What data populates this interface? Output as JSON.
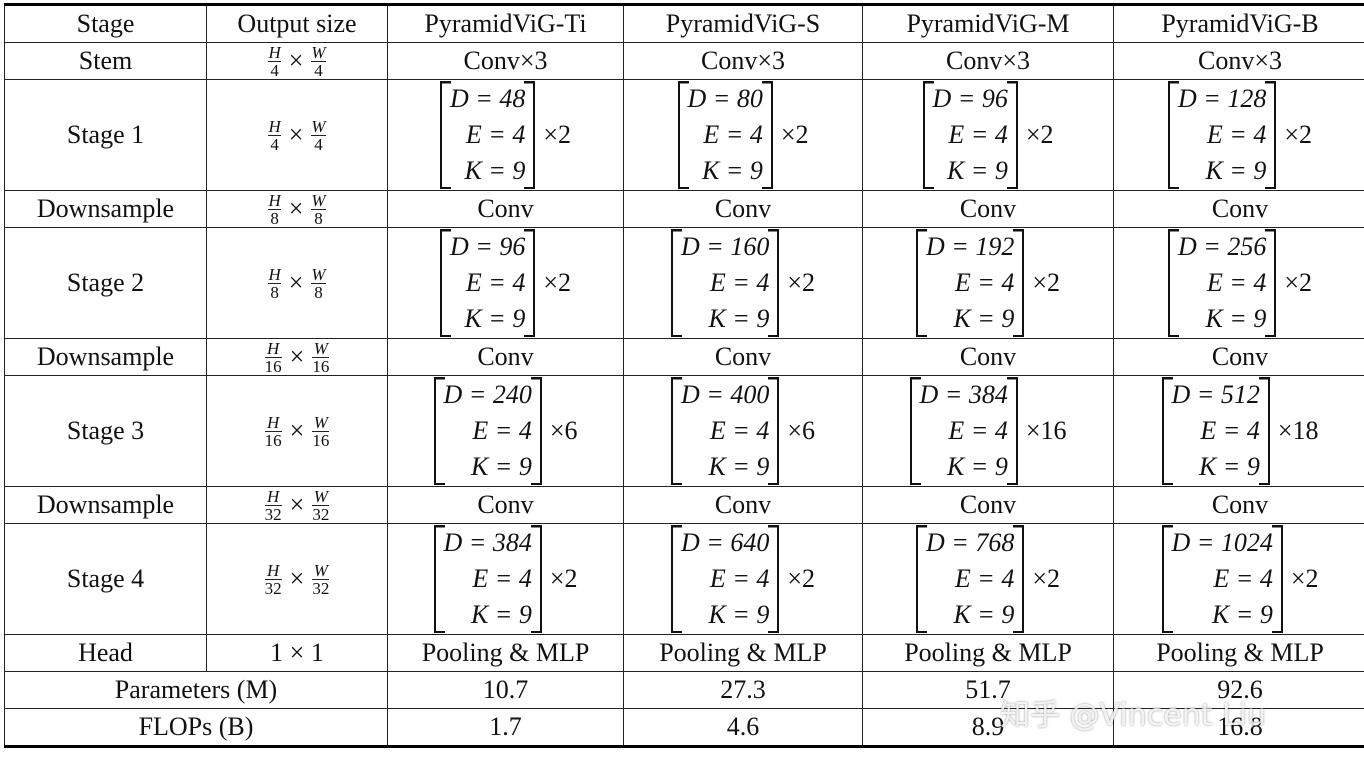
{
  "symbols": {
    "times": "×"
  },
  "table": {
    "header": [
      "Stage",
      "Output size",
      "PyramidViG-Ti",
      "PyramidViG-S",
      "PyramidViG-M",
      "PyramidViG-B"
    ],
    "rows": [
      {
        "stage": "Stem",
        "size": "H/4",
        "size_parts": {
          "h": "H",
          "hd": "4",
          "w": "W",
          "wd": "4"
        },
        "cells": [
          "Conv×3",
          "Conv×3",
          "Conv×3",
          "Conv×3"
        ]
      },
      {
        "stage": "Stage 1",
        "size_parts": {
          "h": "H",
          "hd": "4",
          "w": "W",
          "wd": "4"
        },
        "cells": [
          {
            "D": "D = 48",
            "E": "E = 4",
            "K": "K = 9",
            "repeat": "×2"
          },
          {
            "D": "D = 80",
            "E": "E = 4",
            "K": "K = 9",
            "repeat": "×2"
          },
          {
            "D": "D = 96",
            "E": "E = 4",
            "K": "K = 9",
            "repeat": "×2"
          },
          {
            "D": "D = 128",
            "E": "E = 4",
            "K": "K = 9",
            "repeat": "×2"
          }
        ]
      },
      {
        "stage": "Downsample",
        "size_parts": {
          "h": "H",
          "hd": "8",
          "w": "W",
          "wd": "8"
        },
        "cells": [
          "Conv",
          "Conv",
          "Conv",
          "Conv"
        ]
      },
      {
        "stage": "Stage 2",
        "size_parts": {
          "h": "H",
          "hd": "8",
          "w": "W",
          "wd": "8"
        },
        "cells": [
          {
            "D": "D = 96",
            "E": "E = 4",
            "K": "K = 9",
            "repeat": "×2"
          },
          {
            "D": "D = 160",
            "E": "E = 4",
            "K": "K = 9",
            "repeat": "×2"
          },
          {
            "D": "D = 192",
            "E": "E = 4",
            "K": "K = 9",
            "repeat": "×2"
          },
          {
            "D": "D = 256",
            "E": "E = 4",
            "K": "K = 9",
            "repeat": "×2"
          }
        ]
      },
      {
        "stage": "Downsample",
        "size_parts": {
          "h": "H",
          "hd": "16",
          "w": "W",
          "wd": "16"
        },
        "cells": [
          "Conv",
          "Conv",
          "Conv",
          "Conv"
        ]
      },
      {
        "stage": "Stage 3",
        "size_parts": {
          "h": "H",
          "hd": "16",
          "w": "W",
          "wd": "16"
        },
        "cells": [
          {
            "D": "D = 240",
            "E": "E = 4",
            "K": "K = 9",
            "repeat": "×6"
          },
          {
            "D": "D = 400",
            "E": "E = 4",
            "K": "K = 9",
            "repeat": "×6"
          },
          {
            "D": "D = 384",
            "E": "E = 4",
            "K": "K = 9",
            "repeat": "×16"
          },
          {
            "D": "D = 512",
            "E": "E = 4",
            "K": "K = 9",
            "repeat": "×18"
          }
        ]
      },
      {
        "stage": "Downsample",
        "size_parts": {
          "h": "H",
          "hd": "32",
          "w": "W",
          "wd": "32"
        },
        "cells": [
          "Conv",
          "Conv",
          "Conv",
          "Conv"
        ]
      },
      {
        "stage": "Stage 4",
        "size_parts": {
          "h": "H",
          "hd": "32",
          "w": "W",
          "wd": "32"
        },
        "cells": [
          {
            "D": "D = 384",
            "E": "E = 4",
            "K": "K = 9",
            "repeat": "×2"
          },
          {
            "D": "D = 640",
            "E": "E = 4",
            "K": "K = 9",
            "repeat": "×2"
          },
          {
            "D": "D = 768",
            "E": "E = 4",
            "K": "K = 9",
            "repeat": "×2"
          },
          {
            "D": "D = 1024",
            "E": "E = 4",
            "K": "K = 9",
            "repeat": "×2"
          }
        ]
      },
      {
        "stage": "Head",
        "size_text": "1 × 1",
        "cells": [
          "Pooling & MLP",
          "Pooling & MLP",
          "Pooling & MLP",
          "Pooling & MLP"
        ]
      }
    ],
    "summary": [
      {
        "label": "Parameters (M)",
        "values": [
          10.7,
          27.3,
          51.7,
          92.6
        ]
      },
      {
        "label": "FLOPs (B)",
        "values": [
          1.7,
          4.6,
          8.9,
          16.8
        ]
      }
    ]
  },
  "watermark": "知乎 @Vincent Liu"
}
